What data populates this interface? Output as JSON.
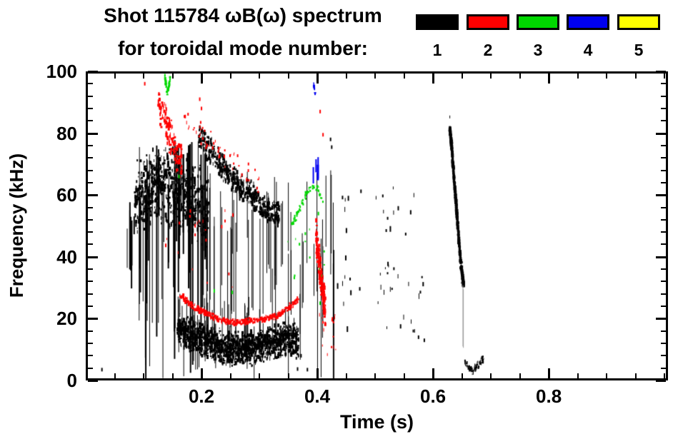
{
  "title": {
    "line1": "Shot 115784 ωB(ω) spectrum",
    "line2": "for toroidal mode number:"
  },
  "legend": {
    "entries": [
      {
        "label": "1",
        "color": "#000000"
      },
      {
        "label": "2",
        "color": "#ff0000"
      },
      {
        "label": "3",
        "color": "#00d800"
      },
      {
        "label": "4",
        "color": "#0000f0"
      },
      {
        "label": "5",
        "color": "#ffff00"
      }
    ]
  },
  "axes": {
    "x": {
      "label": "Time (s)",
      "min": 0,
      "max": 1.006,
      "majors": [
        0.2,
        0.4,
        0.6,
        0.8
      ],
      "major_labels": [
        "0.2",
        "0.4",
        "0.6",
        "0.8"
      ],
      "minor_step": 0.05
    },
    "y": {
      "label": "Frequency (kHz)",
      "min": 0,
      "max": 100,
      "majors": [
        0,
        20,
        40,
        60,
        80,
        100
      ],
      "major_labels": [
        "0",
        "20",
        "40",
        "60",
        "80",
        "100"
      ],
      "minor_step": 4
    }
  },
  "chart_data": {
    "type": "scatter",
    "title": "Shot 115784 ωB(ω) spectrum for toroidal mode number",
    "xlabel": "Time (s)",
    "ylabel": "Frequency (kHz)",
    "xlim": [
      0,
      1.006
    ],
    "ylim": [
      0,
      100
    ],
    "grid": false,
    "legend_position": "top-right",
    "series": [
      {
        "name": "mode n=1",
        "mode": 1,
        "color": "#000000",
        "clusters": [
          {
            "name": "early-streaks",
            "kind": "vlines",
            "seed": 11,
            "t": [
              0.068,
              0.085
            ],
            "n": 7,
            "top": [
              45,
              60
            ],
            "len": [
              4,
              26
            ],
            "w": [
              1,
              2
            ]
          },
          {
            "name": "main-burst",
            "kind": "dashes",
            "seed": 12,
            "env": [
              [
                0.085,
                56
              ],
              [
                0.095,
                61
              ],
              [
                0.105,
                63
              ],
              [
                0.13,
                64
              ],
              [
                0.16,
                62
              ],
              [
                0.19,
                58
              ],
              [
                0.212,
                55
              ]
            ],
            "spread": 14,
            "n": 680,
            "mw": [
              1,
              3
            ],
            "mh": [
              2,
              7
            ]
          },
          {
            "name": "main-burst-streaks",
            "kind": "vlines",
            "seed": 13,
            "t": [
              0.088,
              0.215
            ],
            "n": 55,
            "top": [
              58,
              78
            ],
            "len": [
              18,
              62
            ],
            "w": [
              1,
              2
            ]
          },
          {
            "name": "descending-band",
            "kind": "dashes",
            "seed": 14,
            "env": [
              [
                0.195,
                80
              ],
              [
                0.22,
                73
              ],
              [
                0.25,
                66
              ],
              [
                0.28,
                61
              ],
              [
                0.305,
                57
              ],
              [
                0.335,
                54
              ]
            ],
            "spread": 5,
            "n": 430,
            "mw": [
              1,
              3
            ],
            "mh": [
              2,
              7
            ]
          },
          {
            "name": "band-streaks",
            "kind": "vlines",
            "seed": 15,
            "t": [
              0.2,
              0.345
            ],
            "n": 30,
            "top": [
              48,
              68
            ],
            "len": [
              14,
              42
            ],
            "w": [
              1,
              1
            ]
          },
          {
            "name": "low-freq-blob",
            "kind": "dashes",
            "seed": 16,
            "env": [
              [
                0.158,
                17
              ],
              [
                0.185,
                14
              ],
              [
                0.21,
                12.5
              ],
              [
                0.24,
                10.5
              ],
              [
                0.27,
                10
              ],
              [
                0.3,
                11
              ],
              [
                0.325,
                12
              ],
              [
                0.35,
                13.5
              ],
              [
                0.368,
                12.5
              ]
            ],
            "spread": 6,
            "n": 1550,
            "mw": [
              1,
              3
            ],
            "mh": [
              2,
              6
            ]
          },
          {
            "name": "blob-spikes",
            "kind": "vlines",
            "seed": 17,
            "t": [
              0.155,
              0.37
            ],
            "n": 46,
            "top": [
              17,
              29
            ],
            "len": [
              5,
              18
            ],
            "w": [
              1,
              1
            ]
          },
          {
            "name": "mid-streaks",
            "kind": "vlines",
            "seed": 18,
            "t": [
              0.3,
              0.435
            ],
            "n": 26,
            "top": [
              34,
              68
            ],
            "len": [
              14,
              48
            ],
            "w": [
              1,
              1
            ]
          },
          {
            "name": "scattered-mid",
            "kind": "dashes",
            "seed": 19,
            "t": [
              0.435,
              0.585
            ],
            "f": [
              16,
              63
            ],
            "n": 50,
            "mw": [
              1,
              2
            ],
            "mh": [
              3,
              8
            ]
          },
          {
            "name": "late-chirp-core",
            "kind": "dashes",
            "seed": 20,
            "env": [
              [
                0.629,
                82
              ],
              [
                0.633,
                74
              ],
              [
                0.636,
                66
              ],
              [
                0.64,
                57
              ],
              [
                0.644,
                47
              ],
              [
                0.648,
                38
              ],
              [
                0.653,
                31
              ]
            ],
            "spread": 2,
            "n": 270,
            "mw": [
              2,
              4
            ],
            "mh": [
              2,
              7
            ]
          },
          {
            "name": "late-chirp-halo",
            "kind": "dashes",
            "seed": 21,
            "env": [
              [
                0.629,
                82
              ],
              [
                0.633,
                74
              ],
              [
                0.636,
                66
              ],
              [
                0.64,
                57
              ],
              [
                0.644,
                47
              ],
              [
                0.648,
                38
              ],
              [
                0.653,
                31
              ]
            ],
            "spread": 5,
            "n": 150,
            "mw": [
              1,
              2
            ],
            "mh": [
              2,
              5
            ]
          },
          {
            "name": "late-tail-faint",
            "kind": "vlines",
            "seed": 22,
            "color": "#999999",
            "t": [
              0.65,
              0.653
            ],
            "n": 2,
            "top": [
              29,
              31
            ],
            "len": [
              18,
              22
            ],
            "w": [
              1,
              1
            ]
          },
          {
            "name": "late-low-squiggle",
            "kind": "dashes",
            "seed": 23,
            "env": [
              [
                0.655,
                6
              ],
              [
                0.662,
                4
              ],
              [
                0.668,
                3
              ],
              [
                0.675,
                4.5
              ],
              [
                0.682,
                6
              ],
              [
                0.688,
                7
              ]
            ],
            "spread": 1.5,
            "n": 80,
            "mw": [
              1,
              2
            ],
            "mh": [
              2,
              4
            ]
          },
          {
            "name": "stray-dots",
            "kind": "dots",
            "seed": 24,
            "pts": [
              [
                0.028,
                3.5
              ],
              [
                0.423,
                78
              ],
              [
                0.425,
                75.5
              ],
              [
                0.372,
                8
              ],
              [
                0.366,
                3.7
              ],
              [
                0.383,
                3.5
              ],
              [
                0.575,
                14
              ],
              [
                0.585,
                13
              ]
            ]
          }
        ]
      },
      {
        "name": "mode n=2",
        "mode": 2,
        "color": "#ff0000",
        "clusters": [
          {
            "name": "early-high-blob",
            "kind": "dashes",
            "seed": 31,
            "env": [
              [
                0.125,
                90
              ],
              [
                0.135,
                86
              ],
              [
                0.145,
                80
              ],
              [
                0.155,
                74
              ],
              [
                0.166,
                70
              ]
            ],
            "spread": 7,
            "n": 150,
            "mw": [
              1,
              3
            ],
            "mh": [
              2,
              6
            ]
          },
          {
            "name": "high-arc",
            "kind": "dashes",
            "seed": 32,
            "env": [
              [
                0.17,
                85
              ],
              [
                0.2,
                80
              ],
              [
                0.23,
                75
              ],
              [
                0.26,
                70
              ],
              [
                0.285,
                66
              ],
              [
                0.302,
                63
              ]
            ],
            "spread": 5,
            "n": 55,
            "mw": [
              1,
              2
            ],
            "mh": [
              2,
              5
            ]
          },
          {
            "name": "in-main-scatter",
            "kind": "dashes",
            "seed": 33,
            "t": [
              0.13,
              0.27
            ],
            "f": [
              28,
              56
            ],
            "n": 22,
            "mw": [
              1,
              2
            ],
            "mh": [
              2,
              5
            ]
          },
          {
            "name": "chirp-curve",
            "kind": "dashes",
            "seed": 34,
            "env": [
              [
                0.163,
                27.5
              ],
              [
                0.185,
                24
              ],
              [
                0.21,
                21.5
              ],
              [
                0.235,
                19.5
              ],
              [
                0.26,
                18.7
              ],
              [
                0.285,
                19.3
              ],
              [
                0.31,
                19.8
              ],
              [
                0.332,
                21
              ],
              [
                0.35,
                23.5
              ],
              [
                0.368,
                26.3
              ]
            ],
            "spread": 1.2,
            "n": 420,
            "mw": [
              1,
              3
            ],
            "mh": [
              2,
              4
            ]
          },
          {
            "name": "burst-0p40",
            "kind": "dashes",
            "seed": 35,
            "env": [
              [
                0.398,
                46
              ],
              [
                0.402,
                40
              ],
              [
                0.406,
                34
              ],
              [
                0.41,
                28
              ],
              [
                0.414,
                23
              ]
            ],
            "spread": 6.5,
            "n": 230,
            "mw": [
              1,
              3
            ],
            "mh": [
              2,
              6
            ]
          },
          {
            "name": "burst-0p40-tail",
            "kind": "dashes",
            "seed": 36,
            "t": [
              0.401,
              0.432
            ],
            "f": [
              8,
              22
            ],
            "n": 16,
            "mw": [
              1,
              2
            ],
            "mh": [
              2,
              5
            ]
          },
          {
            "name": "high-dots",
            "kind": "dots",
            "seed": 37,
            "pts": [
              [
                0.102,
                96
              ],
              [
                0.197,
                91
              ],
              [
                0.2,
                88
              ],
              [
                0.405,
                87
              ],
              [
                0.41,
                79.5
              ]
            ]
          }
        ]
      },
      {
        "name": "mode n=3",
        "mode": 3,
        "color": "#00d800",
        "clusters": [
          {
            "name": "early-top-squiggle",
            "kind": "dashes",
            "seed": 41,
            "env": [
              [
                0.1365,
                99
              ],
              [
                0.1385,
                96
              ],
              [
                0.1405,
                93
              ],
              [
                0.1435,
                95
              ],
              [
                0.146,
                98
              ]
            ],
            "spread": 1.3,
            "n": 42,
            "mw": [
              1,
              3
            ],
            "mh": [
              2,
              4
            ]
          },
          {
            "name": "mid-arc",
            "kind": "dashes",
            "seed": 42,
            "env": [
              [
                0.356,
                50
              ],
              [
                0.368,
                55
              ],
              [
                0.38,
                60
              ],
              [
                0.392,
                63
              ],
              [
                0.402,
                62
              ],
              [
                0.41,
                57
              ]
            ],
            "spread": 1.4,
            "n": 55,
            "mw": [
              1,
              3
            ],
            "mh": [
              2,
              4
            ]
          },
          {
            "name": "mid-low-marks",
            "kind": "dashes",
            "seed": 43,
            "t": [
              0.345,
              0.412
            ],
            "f": [
              33,
              49
            ],
            "n": 13,
            "mw": [
              1,
              2
            ],
            "mh": [
              2,
              4
            ]
          },
          {
            "name": "specks",
            "kind": "dots",
            "seed": 44,
            "pts": [
              [
                0.222,
                29
              ],
              [
                0.253,
                28.5
              ],
              [
                0.161,
                66
              ],
              [
                0.402,
                54
              ],
              [
                0.405,
                25
              ]
            ]
          }
        ]
      },
      {
        "name": "mode n=4",
        "mode": 4,
        "color": "#0000f0",
        "clusters": [
          {
            "name": "top-slash",
            "kind": "dashes",
            "seed": 51,
            "env": [
              [
                0.3935,
                96.5
              ],
              [
                0.395,
                94.5
              ],
              [
                0.3965,
                92.5
              ]
            ],
            "spread": 0.8,
            "n": 14,
            "mw": [
              1,
              3
            ],
            "mh": [
              2,
              4
            ]
          },
          {
            "name": "mid-dashes",
            "kind": "vlines",
            "seed": 52,
            "t": [
              0.389,
              0.403
            ],
            "n": 3,
            "top": [
              69,
              74
            ],
            "len": [
              4,
              7
            ],
            "w": [
              2,
              2
            ]
          },
          {
            "name": "mid-dash-long",
            "kind": "vlines",
            "seed": 53,
            "t": [
              0.399,
              0.401
            ],
            "n": 1,
            "top": [
              69,
              70
            ],
            "len": [
              5,
              6
            ],
            "w": [
              2,
              3
            ]
          }
        ]
      },
      {
        "name": "mode n=5",
        "mode": 5,
        "color": "#ffff00",
        "clusters": []
      }
    ]
  }
}
